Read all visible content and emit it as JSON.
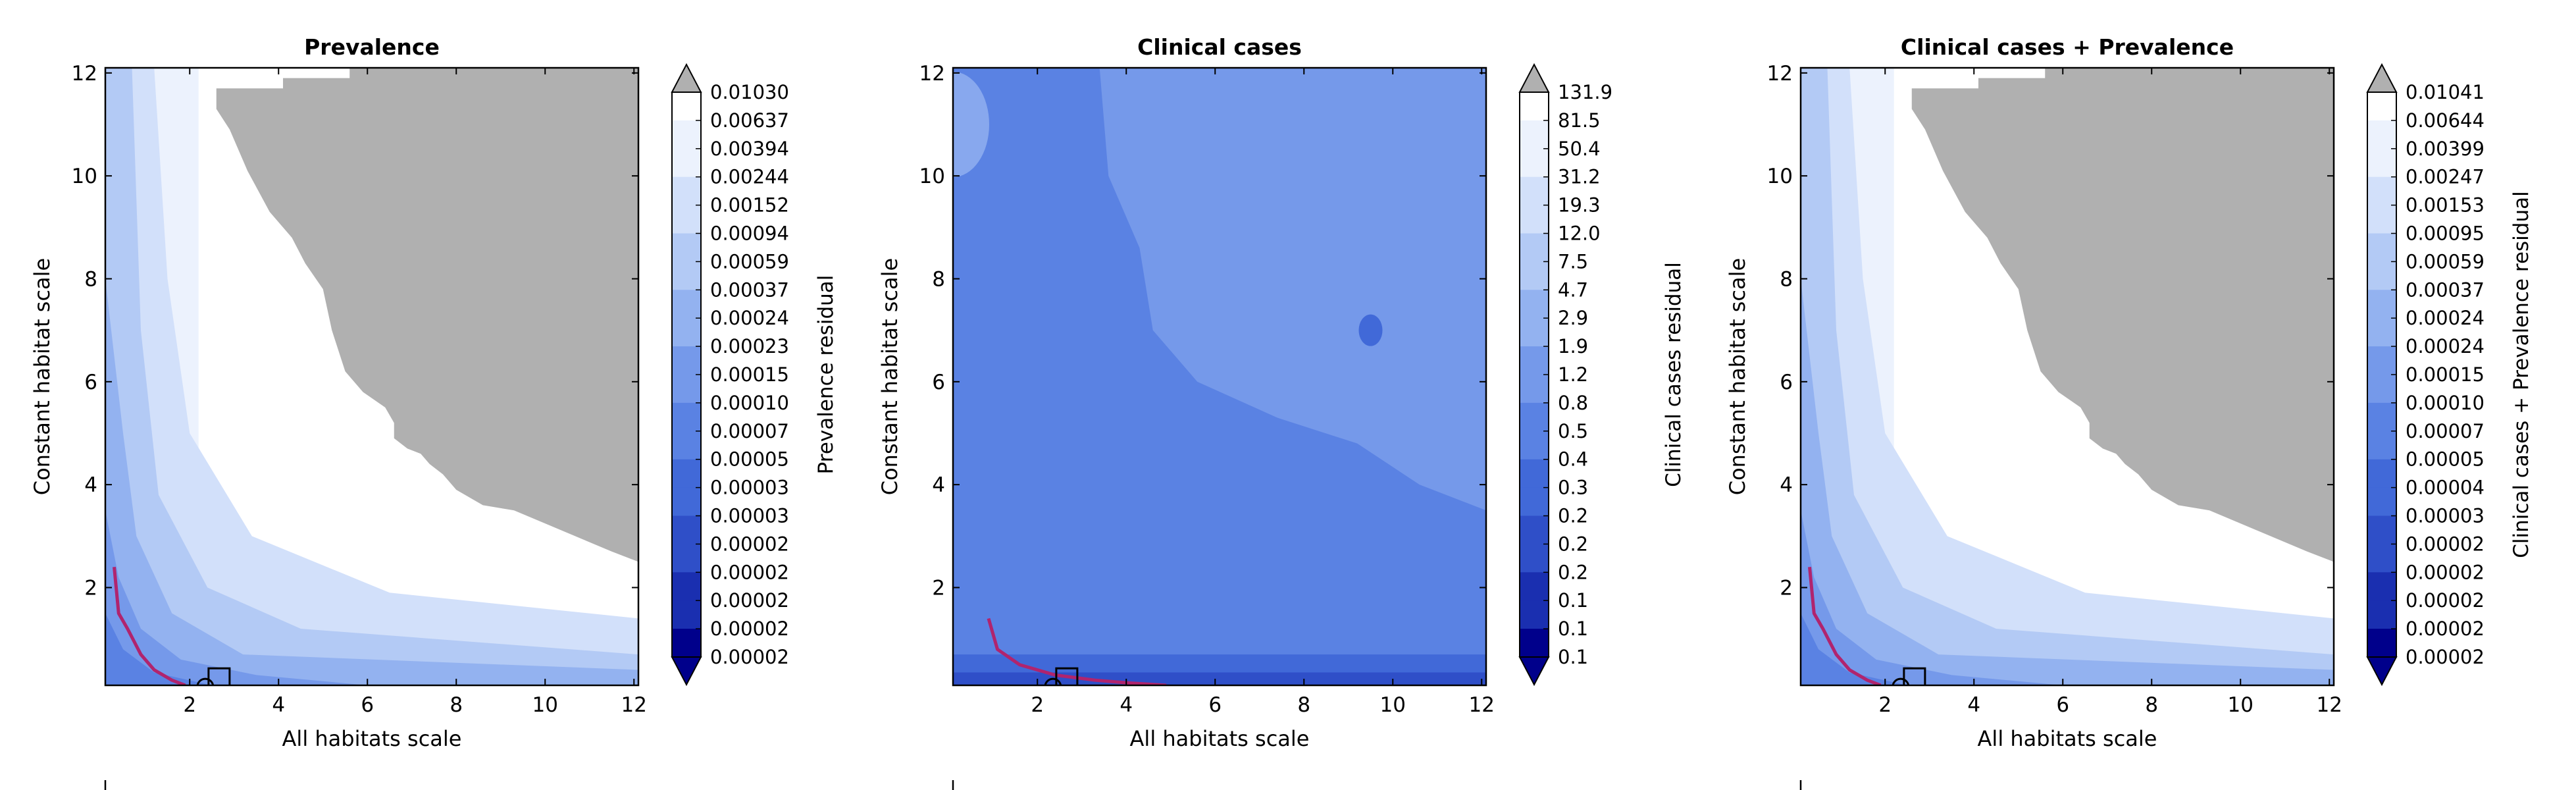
{
  "figure": {
    "xlabel": "All habitats scale",
    "ylabel": "Constant habitat scale",
    "x_ticks": [
      2,
      4,
      6,
      8,
      10,
      12
    ],
    "y_ticks": [
      2,
      4,
      6,
      8,
      10,
      12
    ],
    "xlim": [
      0.1,
      12.1
    ],
    "ylim": [
      0.1,
      12.1
    ],
    "gray_region_color": "#b0b0b0",
    "contour_line_color": "#b0246e",
    "cmap": [
      "#00008b",
      "#1a2fb0",
      "#2f4fc8",
      "#4169d8",
      "#5a82e3",
      "#7599ea",
      "#93b2f0",
      "#b3caf5",
      "#d2e0fa",
      "#ecf2fd",
      "#ffffff"
    ]
  },
  "chart_data": [
    {
      "type": "heatmap",
      "title": "Prevalence",
      "xlabel": "All habitats scale",
      "ylabel": "Constant habitat scale",
      "colorbar_label": "Prevalence residual",
      "colorbar_levels": [
        "0.01030",
        "0.00637",
        "0.00394",
        "0.00244",
        "0.00152",
        "0.00094",
        "0.00059",
        "0.00037",
        "0.00024",
        "0.00023",
        "0.00015",
        "0.00010",
        "0.00007",
        "0.00005",
        "0.00003",
        "0.00003",
        "0.00002",
        "0.00002",
        "0.00002",
        "0.00002",
        "0.00002"
      ],
      "xlim": [
        0.1,
        12.1
      ],
      "ylim": [
        0.1,
        12.1
      ],
      "gray_region": [
        [
          2.6,
          12.1
        ],
        [
          2.6,
          11.7
        ],
        [
          4.1,
          11.7
        ],
        [
          4.1,
          11.9
        ],
        [
          5.6,
          11.9
        ],
        [
          5.6,
          12.1
        ],
        [
          12.1,
          12.1
        ],
        [
          12.1,
          2.5
        ],
        [
          11.5,
          2.7
        ],
        [
          10.4,
          3.1
        ],
        [
          9.3,
          3.5
        ],
        [
          8.6,
          3.6
        ],
        [
          8.0,
          3.9
        ],
        [
          7.7,
          4.2
        ],
        [
          7.4,
          4.4
        ],
        [
          7.2,
          4.6
        ],
        [
          6.9,
          4.7
        ],
        [
          6.6,
          4.9
        ],
        [
          6.6,
          5.2
        ],
        [
          6.4,
          5.5
        ],
        [
          5.9,
          5.8
        ],
        [
          5.5,
          6.2
        ],
        [
          5.2,
          7.0
        ],
        [
          5.0,
          7.8
        ],
        [
          4.6,
          8.3
        ],
        [
          4.3,
          8.8
        ],
        [
          3.8,
          9.3
        ],
        [
          3.3,
          10.1
        ],
        [
          2.9,
          10.9
        ],
        [
          2.6,
          11.3
        ]
      ],
      "contour_line": [
        [
          0.3,
          2.4
        ],
        [
          0.4,
          1.5
        ],
        [
          0.6,
          1.2
        ],
        [
          0.9,
          0.7
        ],
        [
          1.2,
          0.4
        ],
        [
          1.6,
          0.2
        ],
        [
          1.9,
          0.1
        ]
      ],
      "marker": {
        "x": 2.35,
        "y": 0.2
      }
    },
    {
      "type": "heatmap",
      "title": "Clinical cases",
      "xlabel": "All habitats scale",
      "ylabel": "Constant habitat scale",
      "colorbar_label": "Clinical cases residual",
      "colorbar_levels": [
        "131.9",
        "81.5",
        "50.4",
        "31.2",
        "19.3",
        "12.0",
        "7.5",
        "4.7",
        "2.9",
        "1.9",
        "1.2",
        "0.8",
        "0.5",
        "0.4",
        "0.3",
        "0.2",
        "0.2",
        "0.2",
        "0.1",
        "0.1",
        "0.1"
      ],
      "xlim": [
        0.1,
        12.1
      ],
      "ylim": [
        0.1,
        12.1
      ],
      "gray_region": [],
      "contour_line": [
        [
          0.9,
          1.4
        ],
        [
          1.1,
          0.8
        ],
        [
          1.6,
          0.5
        ],
        [
          2.4,
          0.3
        ],
        [
          3.3,
          0.2
        ],
        [
          4.0,
          0.15
        ],
        [
          4.9,
          0.1
        ]
      ],
      "marker": {
        "x": 2.35,
        "y": 0.2
      }
    },
    {
      "type": "heatmap",
      "title": "Clinical cases + Prevalence",
      "xlabel": "All habitats scale",
      "ylabel": "Constant habitat scale",
      "colorbar_label": "Clinical cases + Prevalence residual",
      "colorbar_levels": [
        "0.01041",
        "0.00644",
        "0.00399",
        "0.00247",
        "0.00153",
        "0.00095",
        "0.00059",
        "0.00037",
        "0.00024",
        "0.00024",
        "0.00015",
        "0.00010",
        "0.00007",
        "0.00005",
        "0.00004",
        "0.00003",
        "0.00002",
        "0.00002",
        "0.00002",
        "0.00002",
        "0.00002"
      ],
      "xlim": [
        0.1,
        12.1
      ],
      "ylim": [
        0.1,
        12.1
      ],
      "gray_region": [
        [
          2.6,
          12.1
        ],
        [
          2.6,
          11.7
        ],
        [
          4.1,
          11.7
        ],
        [
          4.1,
          11.9
        ],
        [
          5.6,
          11.9
        ],
        [
          5.6,
          12.1
        ],
        [
          12.1,
          12.1
        ],
        [
          12.1,
          2.5
        ],
        [
          11.5,
          2.7
        ],
        [
          10.4,
          3.1
        ],
        [
          9.3,
          3.5
        ],
        [
          8.6,
          3.6
        ],
        [
          8.0,
          3.9
        ],
        [
          7.7,
          4.2
        ],
        [
          7.4,
          4.4
        ],
        [
          7.2,
          4.6
        ],
        [
          6.9,
          4.7
        ],
        [
          6.6,
          4.9
        ],
        [
          6.6,
          5.2
        ],
        [
          6.4,
          5.5
        ],
        [
          5.9,
          5.8
        ],
        [
          5.5,
          6.2
        ],
        [
          5.2,
          7.0
        ],
        [
          5.0,
          7.8
        ],
        [
          4.6,
          8.3
        ],
        [
          4.3,
          8.8
        ],
        [
          3.8,
          9.3
        ],
        [
          3.3,
          10.1
        ],
        [
          2.9,
          10.9
        ],
        [
          2.6,
          11.3
        ]
      ],
      "contour_line": [
        [
          0.3,
          2.4
        ],
        [
          0.4,
          1.5
        ],
        [
          0.6,
          1.2
        ],
        [
          0.9,
          0.7
        ],
        [
          1.2,
          0.4
        ],
        [
          1.6,
          0.2
        ],
        [
          1.9,
          0.1
        ]
      ],
      "marker": {
        "x": 2.35,
        "y": 0.2
      }
    }
  ]
}
